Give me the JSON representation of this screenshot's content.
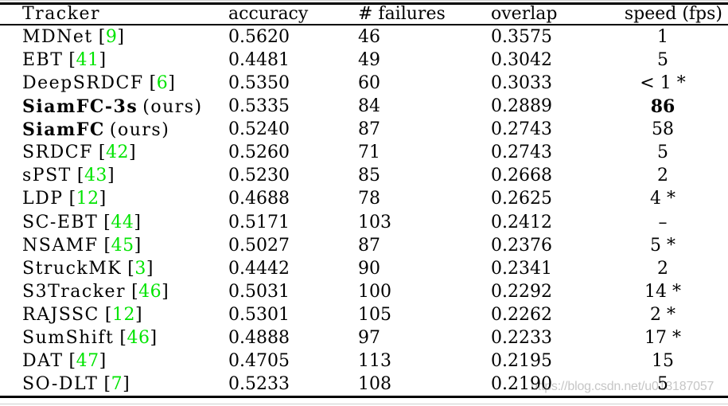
{
  "table": {
    "headers": [
      "Tracker",
      "accuracy",
      "# failures",
      "overlap",
      "speed (fps)"
    ],
    "rows": [
      {
        "tracker": "MDNet",
        "cite": "9",
        "bold": false,
        "accuracy": "0.5620",
        "failures": "46",
        "overlap": "0.3575",
        "speed": "1",
        "prefix": "",
        "star": false,
        "speed_bold": false
      },
      {
        "tracker": "EBT",
        "cite": "41",
        "bold": false,
        "accuracy": "0.4481",
        "failures": "49",
        "overlap": "0.3042",
        "speed": "5",
        "prefix": "",
        "star": false,
        "speed_bold": false
      },
      {
        "tracker": "DeepSRDCF",
        "cite": "6",
        "bold": false,
        "accuracy": "0.5350",
        "failures": "60",
        "overlap": "0.3033",
        "speed": "1",
        "prefix": "<",
        "star": true,
        "speed_bold": false
      },
      {
        "tracker": "SiamFC-3s",
        "suffix": "(ours)",
        "bold": true,
        "accuracy": "0.5335",
        "failures": "84",
        "overlap": "0.2889",
        "speed": "86",
        "prefix": "",
        "star": false,
        "speed_bold": true
      },
      {
        "tracker": "SiamFC",
        "suffix": "(ours)",
        "bold": true,
        "accuracy": "0.5240",
        "failures": "87",
        "overlap": "0.2743",
        "speed": "58",
        "prefix": "",
        "star": false,
        "speed_bold": false
      },
      {
        "tracker": "SRDCF",
        "cite": "42",
        "bold": false,
        "accuracy": "0.5260",
        "failures": "71",
        "overlap": "0.2743",
        "speed": "5",
        "prefix": "",
        "star": false,
        "speed_bold": false
      },
      {
        "tracker": "sPST",
        "cite": "43",
        "bold": false,
        "accuracy": "0.5230",
        "failures": "85",
        "overlap": "0.2668",
        "speed": "2",
        "prefix": "",
        "star": false,
        "speed_bold": false
      },
      {
        "tracker": "LDP",
        "cite": "12",
        "bold": false,
        "accuracy": "0.4688",
        "failures": "78",
        "overlap": "0.2625",
        "speed": "4",
        "prefix": "",
        "star": true,
        "speed_bold": false
      },
      {
        "tracker": "SC-EBT",
        "cite": "44",
        "bold": false,
        "accuracy": "0.5171",
        "failures": "103",
        "overlap": "0.2412",
        "speed": "–",
        "prefix": "",
        "star": false,
        "speed_bold": false
      },
      {
        "tracker": "NSAMF",
        "cite": "45",
        "bold": false,
        "accuracy": "0.5027",
        "failures": "87",
        "overlap": "0.2376",
        "speed": "5",
        "prefix": "",
        "star": true,
        "speed_bold": false
      },
      {
        "tracker": "StruckMK",
        "cite": "3",
        "bold": false,
        "accuracy": "0.4442",
        "failures": "90",
        "overlap": "0.2341",
        "speed": "2",
        "prefix": "",
        "star": false,
        "speed_bold": false
      },
      {
        "tracker": "S3Tracker",
        "cite": "46",
        "bold": false,
        "accuracy": "0.5031",
        "failures": "100",
        "overlap": "0.2292",
        "speed": "14",
        "prefix": "",
        "star": true,
        "speed_bold": false
      },
      {
        "tracker": "RAJSSC",
        "cite": "12",
        "bold": false,
        "accuracy": "0.5301",
        "failures": "105",
        "overlap": "0.2262",
        "speed": "2",
        "prefix": "",
        "star": true,
        "speed_bold": false
      },
      {
        "tracker": "SumShift",
        "cite": "46",
        "bold": false,
        "accuracy": "0.4888",
        "failures": "97",
        "overlap": "0.2233",
        "speed": "17",
        "prefix": "",
        "star": true,
        "speed_bold": false
      },
      {
        "tracker": "DAT",
        "cite": "47",
        "bold": false,
        "accuracy": "0.4705",
        "failures": "113",
        "overlap": "0.2195",
        "speed": "15",
        "prefix": "",
        "star": false,
        "speed_bold": false
      },
      {
        "tracker": "SO-DLT",
        "cite": "7",
        "bold": false,
        "accuracy": "0.5233",
        "failures": "108",
        "overlap": "0.2190",
        "speed": "5",
        "prefix": "",
        "star": false,
        "speed_bold": false
      }
    ]
  },
  "punct": {
    "open": "[",
    "close": "]",
    "star": "*"
  },
  "watermark": {
    "text": "https://blog.csdn.net/u013187057"
  },
  "colors": {
    "citation_link": "#00e400",
    "watermark": "#c6c6c6",
    "rule": "#000000",
    "background": "#ffffff"
  }
}
